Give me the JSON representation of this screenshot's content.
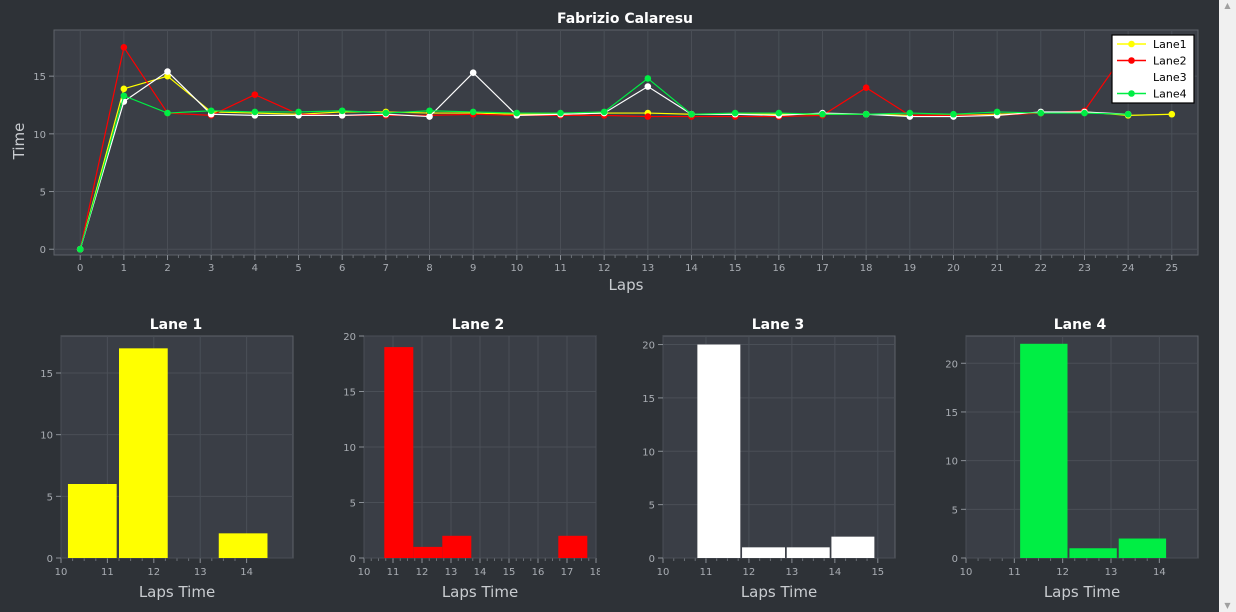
{
  "main_chart": {
    "title": "Fabrizio Calaresu",
    "xlabel": "Laps",
    "ylabel": "Time"
  },
  "chart_data": [
    {
      "type": "line",
      "title": "Fabrizio Calaresu",
      "xlabel": "Laps",
      "ylabel": "Time",
      "x": [
        0,
        1,
        2,
        3,
        4,
        5,
        6,
        7,
        8,
        9,
        10,
        11,
        12,
        13,
        14,
        15,
        16,
        17,
        18,
        19,
        20,
        21,
        22,
        23,
        24,
        25
      ],
      "xlim": [
        -0.6,
        25.6
      ],
      "ylim": [
        -0.5,
        19
      ],
      "xticks": [
        0,
        1,
        2,
        3,
        4,
        5,
        6,
        7,
        8,
        9,
        10,
        11,
        12,
        13,
        14,
        15,
        16,
        17,
        18,
        19,
        20,
        21,
        22,
        23,
        24,
        25
      ],
      "yticks": [
        0,
        5,
        10,
        15
      ],
      "grid": true,
      "legend_position": "top-right",
      "series": [
        {
          "name": "Lane1",
          "color": "#ffff00",
          "values": [
            0,
            13.9,
            15.0,
            11.9,
            11.8,
            11.7,
            11.9,
            11.9,
            11.8,
            11.8,
            11.7,
            11.7,
            11.8,
            11.8,
            11.7,
            11.7,
            11.7,
            11.7,
            11.7,
            11.6,
            11.6,
            11.7,
            11.8,
            11.9,
            11.6,
            11.7
          ]
        },
        {
          "name": "Lane2",
          "color": "#ff0000",
          "values": [
            0,
            17.5,
            11.8,
            11.6,
            13.4,
            11.7,
            11.6,
            11.6,
            11.6,
            11.7,
            11.6,
            11.6,
            11.6,
            11.5,
            11.5,
            11.5,
            11.5,
            11.6,
            14.0,
            11.6,
            11.6,
            11.6,
            11.8,
            12.0,
            17.4,
            null
          ]
        },
        {
          "name": "Lane3",
          "color": "#ffffff",
          "values": [
            0,
            12.8,
            15.4,
            11.7,
            11.6,
            11.6,
            11.6,
            11.7,
            11.5,
            15.3,
            11.6,
            11.7,
            11.8,
            14.1,
            11.7,
            11.7,
            11.6,
            11.8,
            11.7,
            11.5,
            11.5,
            11.6,
            11.9,
            11.9,
            11.7,
            null
          ]
        },
        {
          "name": "Lane4",
          "color": "#00ee44",
          "values": [
            0,
            13.3,
            11.8,
            12.0,
            11.9,
            11.9,
            12.0,
            11.8,
            12.0,
            11.9,
            11.8,
            11.8,
            11.9,
            14.8,
            11.7,
            11.8,
            11.8,
            11.7,
            11.7,
            11.8,
            11.7,
            11.9,
            11.8,
            11.8,
            11.7,
            null
          ]
        }
      ]
    },
    {
      "type": "bar",
      "title": "Lane 1",
      "xlabel": "Laps Time",
      "color": "#ffff00",
      "xlim": [
        10,
        15
      ],
      "ylim": [
        0,
        18
      ],
      "xticks": [
        10,
        11,
        12,
        13,
        14
      ],
      "yticks": [
        0,
        5,
        10,
        15
      ],
      "grid": true,
      "bins": [
        {
          "x0": 10.15,
          "x1": 11.2,
          "value": 6
        },
        {
          "x0": 11.25,
          "x1": 12.3,
          "value": 17
        },
        {
          "x0": 13.4,
          "x1": 14.45,
          "value": 2
        }
      ]
    },
    {
      "type": "bar",
      "title": "Lane 2",
      "xlabel": "Laps Time",
      "color": "#ff0000",
      "xlim": [
        10,
        18
      ],
      "ylim": [
        0,
        20
      ],
      "xticks": [
        10,
        11,
        12,
        13,
        14,
        15,
        16,
        17,
        18
      ],
      "yticks": [
        0,
        5,
        10,
        15,
        20
      ],
      "grid": true,
      "bins": [
        {
          "x0": 10.7,
          "x1": 11.7,
          "value": 19
        },
        {
          "x0": 11.7,
          "x1": 12.7,
          "value": 1
        },
        {
          "x0": 12.7,
          "x1": 13.7,
          "value": 2
        },
        {
          "x0": 16.7,
          "x1": 17.7,
          "value": 2
        }
      ]
    },
    {
      "type": "bar",
      "title": "Lane 3",
      "xlabel": "Laps Time",
      "color": "#ffffff",
      "xlim": [
        10,
        15.4
      ],
      "ylim": [
        0,
        20.8
      ],
      "xticks": [
        10,
        11,
        12,
        13,
        14,
        15
      ],
      "yticks": [
        0,
        5,
        10,
        15,
        20
      ],
      "grid": true,
      "bins": [
        {
          "x0": 10.8,
          "x1": 11.8,
          "value": 20
        },
        {
          "x0": 11.84,
          "x1": 12.84,
          "value": 1
        },
        {
          "x0": 12.88,
          "x1": 13.88,
          "value": 1
        },
        {
          "x0": 13.92,
          "x1": 14.92,
          "value": 2
        }
      ]
    },
    {
      "type": "bar",
      "title": "Lane 4",
      "xlabel": "Laps Time",
      "color": "#00ee44",
      "xlim": [
        10,
        14.8
      ],
      "ylim": [
        0,
        22.8
      ],
      "xticks": [
        10,
        11,
        12,
        13,
        14
      ],
      "yticks": [
        0,
        5,
        10,
        15,
        20
      ],
      "grid": true,
      "bins": [
        {
          "x0": 11.12,
          "x1": 12.1,
          "value": 22
        },
        {
          "x0": 12.14,
          "x1": 13.12,
          "value": 1
        },
        {
          "x0": 13.16,
          "x1": 14.14,
          "value": 2
        }
      ]
    }
  ]
}
